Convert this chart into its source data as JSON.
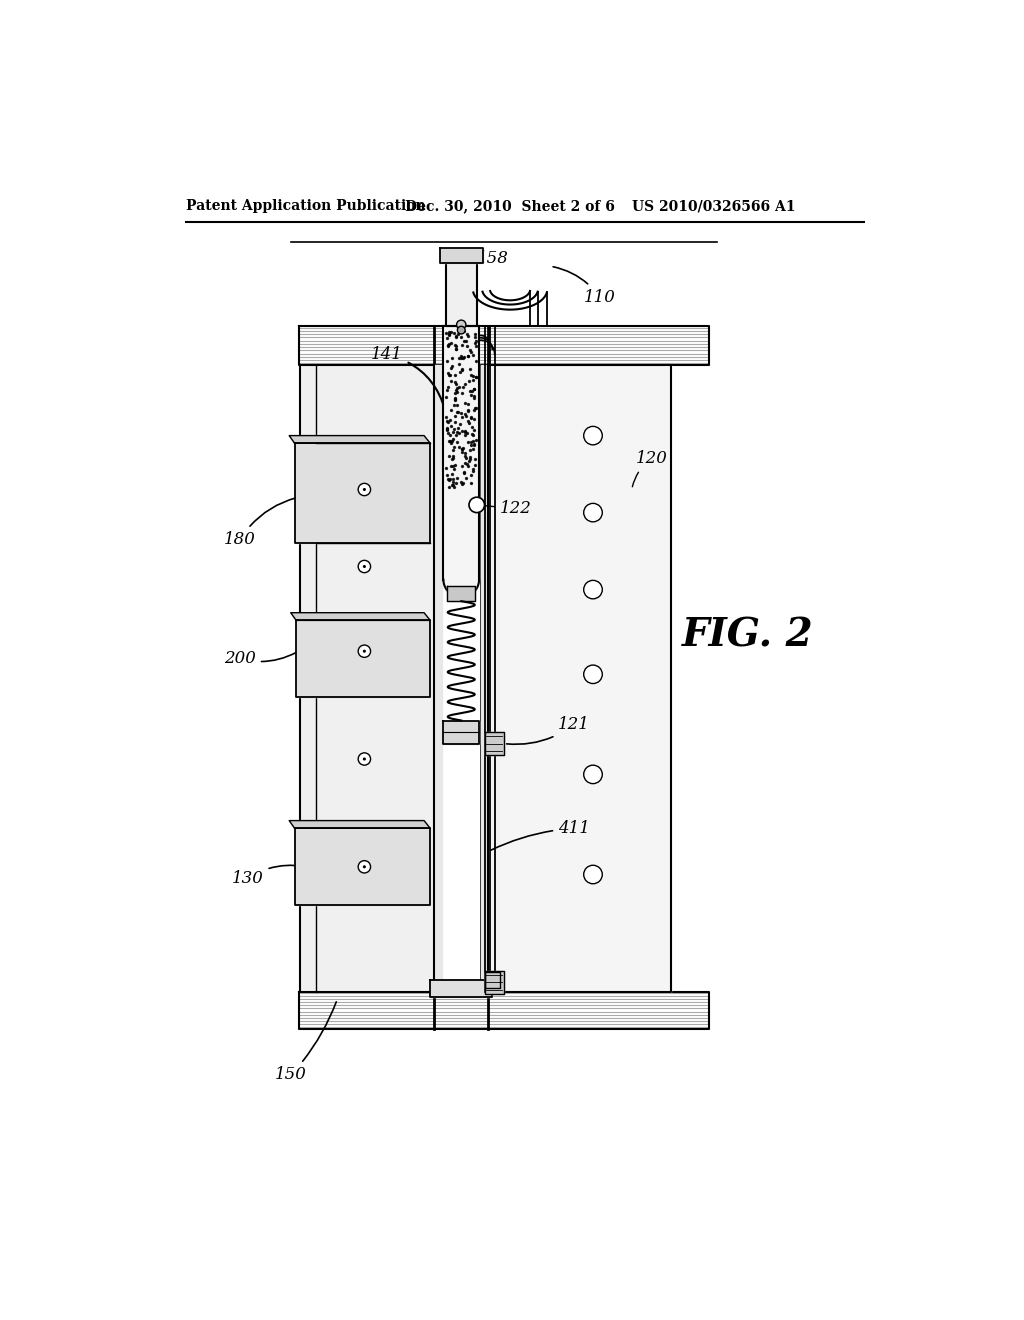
{
  "bg_color": "#ffffff",
  "header_text_left": "Patent Application Publication",
  "header_text_mid": "Dec. 30, 2010  Sheet 2 of 6",
  "header_text_right": "US 2010/0326566 A1",
  "fig_label": "FIG. 2"
}
